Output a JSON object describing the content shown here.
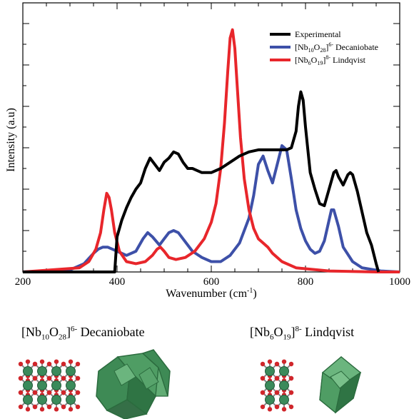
{
  "chart_data": {
    "type": "line",
    "xlabel_text": "Wavenumber (cm",
    "xlabel_sup": "-1",
    "xlabel_end": ")",
    "ylabel": "Intensity (a.u)",
    "xlim": [
      200,
      1000
    ],
    "ylim": [
      0,
      1.3
    ],
    "x_ticks": [
      "200",
      "400",
      "600",
      "800",
      "1000"
    ],
    "grid": false,
    "legend_position": "top-right",
    "series": [
      {
        "name": "Experimental",
        "color": "#000000",
        "x": [
          200,
          395,
          400,
          410,
          420,
          430,
          440,
          450,
          460,
          470,
          480,
          490,
          500,
          510,
          520,
          530,
          540,
          550,
          560,
          570,
          580,
          600,
          620,
          640,
          660,
          680,
          700,
          720,
          740,
          760,
          770,
          780,
          785,
          790,
          795,
          800,
          810,
          820,
          830,
          840,
          850,
          860,
          865,
          870,
          880,
          890,
          895,
          900,
          910,
          920,
          930,
          940,
          950,
          955
        ],
        "y": [
          0,
          0,
          0.17,
          0.25,
          0.31,
          0.36,
          0.4,
          0.43,
          0.5,
          0.55,
          0.52,
          0.49,
          0.53,
          0.55,
          0.58,
          0.57,
          0.53,
          0.5,
          0.5,
          0.49,
          0.48,
          0.48,
          0.5,
          0.53,
          0.56,
          0.58,
          0.59,
          0.59,
          0.59,
          0.59,
          0.6,
          0.68,
          0.8,
          0.87,
          0.83,
          0.7,
          0.48,
          0.4,
          0.33,
          0.32,
          0.4,
          0.48,
          0.49,
          0.46,
          0.42,
          0.47,
          0.48,
          0.47,
          0.39,
          0.29,
          0.19,
          0.13,
          0.04,
          0
        ]
      },
      {
        "name_main": "[Nb",
        "name_sub1": "10",
        "name_mid": "O",
        "name_sub2": "28",
        "name_close": "]",
        "name_sup": "6-",
        "name_tail": " Decaniobate",
        "color": "#3d50a8",
        "x": [
          200,
          300,
          330,
          350,
          360,
          370,
          380,
          390,
          400,
          420,
          440,
          455,
          465,
          475,
          490,
          500,
          510,
          520,
          530,
          540,
          560,
          580,
          600,
          620,
          640,
          660,
          680,
          690,
          700,
          710,
          720,
          730,
          740,
          750,
          760,
          770,
          780,
          790,
          800,
          810,
          820,
          830,
          840,
          850,
          855,
          860,
          870,
          880,
          900,
          920,
          960,
          1000
        ],
        "y": [
          0,
          0.01,
          0.04,
          0.09,
          0.11,
          0.12,
          0.12,
          0.11,
          0.1,
          0.08,
          0.1,
          0.16,
          0.19,
          0.17,
          0.13,
          0.16,
          0.19,
          0.2,
          0.19,
          0.16,
          0.1,
          0.07,
          0.05,
          0.05,
          0.08,
          0.14,
          0.26,
          0.37,
          0.52,
          0.56,
          0.49,
          0.43,
          0.52,
          0.61,
          0.59,
          0.45,
          0.3,
          0.21,
          0.15,
          0.11,
          0.09,
          0.1,
          0.15,
          0.25,
          0.3,
          0.3,
          0.22,
          0.12,
          0.05,
          0.02,
          0.005,
          0
        ]
      },
      {
        "name_main": "[Nb",
        "name_sub1": "6",
        "name_mid": "O",
        "name_sub2": "19",
        "name_close": "]",
        "name_sup": "8-",
        "name_tail": " Lindqvist",
        "color": "#e8262b",
        "x": [
          200,
          320,
          340,
          355,
          365,
          372,
          378,
          383,
          388,
          395,
          405,
          420,
          440,
          460,
          475,
          485,
          492,
          500,
          510,
          525,
          545,
          565,
          585,
          600,
          610,
          620,
          628,
          635,
          640,
          645,
          650,
          655,
          662,
          670,
          680,
          690,
          700,
          710,
          720,
          730,
          750,
          780,
          850,
          950,
          1000
        ],
        "y": [
          0,
          0.02,
          0.05,
          0.11,
          0.19,
          0.3,
          0.38,
          0.36,
          0.3,
          0.19,
          0.1,
          0.05,
          0.04,
          0.05,
          0.08,
          0.11,
          0.12,
          0.1,
          0.07,
          0.06,
          0.07,
          0.1,
          0.16,
          0.24,
          0.33,
          0.5,
          0.72,
          0.97,
          1.13,
          1.17,
          1.08,
          0.9,
          0.65,
          0.45,
          0.3,
          0.21,
          0.16,
          0.14,
          0.12,
          0.09,
          0.05,
          0.02,
          0.005,
          0,
          0
        ]
      }
    ]
  },
  "structures": {
    "left": {
      "label_main": "[Nb",
      "label_sub1": "10",
      "label_mid": "O",
      "label_sub2": "28",
      "label_close": "]",
      "label_sup": "6-",
      "label_name": "  Decaniobate"
    },
    "right": {
      "label_main": "[Nb",
      "label_sub1": "6",
      "label_mid": "O",
      "label_sub2": "19",
      "label_close": "]",
      "label_sup": "8-",
      "label_name": "  Lindqvist"
    }
  },
  "colors": {
    "polyhedron_green": "#3e8a55",
    "polyhedron_edge": "#2b6b3e",
    "nb_atom": "#3b8a5b",
    "o_atom": "#d0262b"
  }
}
